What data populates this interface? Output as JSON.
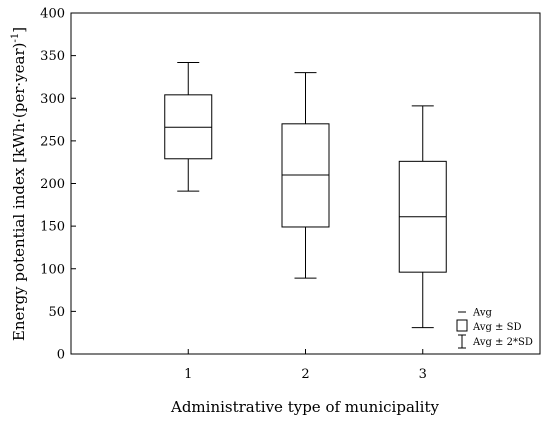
{
  "chart_data": {
    "type": "box",
    "xlabel": "Administrative type of municipality",
    "ylabel_main": "Energy potential index [kWh·(per·year)",
    "ylabel_sup": "-1",
    "ylabel_end": "]",
    "ylim": [
      0,
      400
    ],
    "yticks": [
      "0",
      "50",
      "100",
      "150",
      "200",
      "250",
      "300",
      "350",
      "400"
    ],
    "categories": [
      "1",
      "2",
      "3"
    ],
    "boxes": [
      {
        "category": "1",
        "avg": 266,
        "sd_low": 229,
        "sd_high": 304,
        "sd2_low": 191,
        "sd2_high": 342
      },
      {
        "category": "2",
        "avg": 210,
        "sd_low": 149,
        "sd_high": 270,
        "sd2_low": 89,
        "sd2_high": 330
      },
      {
        "category": "3",
        "avg": 161,
        "sd_low": 96,
        "sd_high": 226,
        "sd2_low": 31,
        "sd2_high": 291
      }
    ],
    "legend": {
      "placement": "bottom-right",
      "entries": [
        "Avg",
        "Avg ± SD",
        "Avg ± 2*SD"
      ]
    },
    "grid": false
  }
}
